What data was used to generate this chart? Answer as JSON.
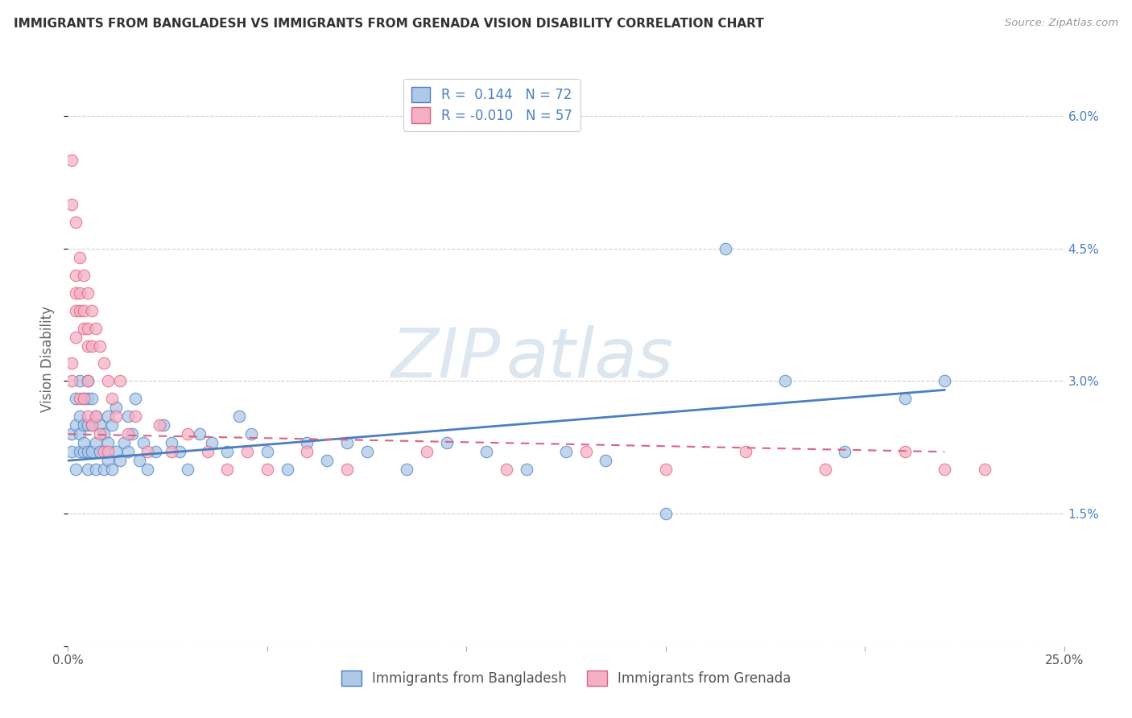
{
  "title": "IMMIGRANTS FROM BANGLADESH VS IMMIGRANTS FROM GRENADA VISION DISABILITY CORRELATION CHART",
  "source": "Source: ZipAtlas.com",
  "ylabel": "Vision Disability",
  "xlim": [
    0.0,
    0.25
  ],
  "ylim": [
    0.0,
    0.065
  ],
  "color_bangladesh": "#adc8e8",
  "color_grenada": "#f4b0c4",
  "line_color_bangladesh": "#4a7fc1",
  "line_color_grenada": "#e06080",
  "watermark_zip": "ZIP",
  "watermark_atlas": "atlas",
  "bangladesh_x": [
    0.001,
    0.001,
    0.002,
    0.002,
    0.002,
    0.003,
    0.003,
    0.003,
    0.003,
    0.004,
    0.004,
    0.004,
    0.004,
    0.005,
    0.005,
    0.005,
    0.005,
    0.005,
    0.006,
    0.006,
    0.006,
    0.007,
    0.007,
    0.007,
    0.008,
    0.008,
    0.009,
    0.009,
    0.01,
    0.01,
    0.01,
    0.011,
    0.011,
    0.012,
    0.012,
    0.013,
    0.014,
    0.015,
    0.015,
    0.016,
    0.017,
    0.018,
    0.019,
    0.02,
    0.022,
    0.024,
    0.026,
    0.028,
    0.03,
    0.033,
    0.036,
    0.04,
    0.043,
    0.046,
    0.05,
    0.055,
    0.06,
    0.065,
    0.07,
    0.075,
    0.085,
    0.095,
    0.105,
    0.115,
    0.125,
    0.135,
    0.15,
    0.165,
    0.18,
    0.195,
    0.21,
    0.22
  ],
  "bangladesh_y": [
    0.022,
    0.024,
    0.02,
    0.025,
    0.028,
    0.022,
    0.024,
    0.026,
    0.03,
    0.022,
    0.025,
    0.028,
    0.023,
    0.02,
    0.022,
    0.025,
    0.028,
    0.03,
    0.022,
    0.025,
    0.028,
    0.02,
    0.023,
    0.026,
    0.022,
    0.025,
    0.02,
    0.024,
    0.021,
    0.023,
    0.026,
    0.02,
    0.025,
    0.022,
    0.027,
    0.021,
    0.023,
    0.022,
    0.026,
    0.024,
    0.028,
    0.021,
    0.023,
    0.02,
    0.022,
    0.025,
    0.023,
    0.022,
    0.02,
    0.024,
    0.023,
    0.022,
    0.026,
    0.024,
    0.022,
    0.02,
    0.023,
    0.021,
    0.023,
    0.022,
    0.02,
    0.023,
    0.022,
    0.02,
    0.022,
    0.021,
    0.015,
    0.045,
    0.03,
    0.022,
    0.028,
    0.03
  ],
  "grenada_x": [
    0.001,
    0.001,
    0.001,
    0.001,
    0.002,
    0.002,
    0.002,
    0.002,
    0.002,
    0.003,
    0.003,
    0.003,
    0.003,
    0.004,
    0.004,
    0.004,
    0.004,
    0.005,
    0.005,
    0.005,
    0.005,
    0.005,
    0.006,
    0.006,
    0.006,
    0.007,
    0.007,
    0.008,
    0.008,
    0.009,
    0.009,
    0.01,
    0.01,
    0.011,
    0.012,
    0.013,
    0.015,
    0.017,
    0.02,
    0.023,
    0.026,
    0.03,
    0.035,
    0.04,
    0.045,
    0.05,
    0.06,
    0.07,
    0.09,
    0.11,
    0.13,
    0.15,
    0.17,
    0.19,
    0.21,
    0.22,
    0.23
  ],
  "grenada_y": [
    0.05,
    0.055,
    0.03,
    0.032,
    0.048,
    0.042,
    0.04,
    0.038,
    0.035,
    0.044,
    0.04,
    0.038,
    0.028,
    0.042,
    0.038,
    0.036,
    0.028,
    0.04,
    0.036,
    0.034,
    0.03,
    0.026,
    0.038,
    0.034,
    0.025,
    0.036,
    0.026,
    0.034,
    0.024,
    0.032,
    0.022,
    0.03,
    0.022,
    0.028,
    0.026,
    0.03,
    0.024,
    0.026,
    0.022,
    0.025,
    0.022,
    0.024,
    0.022,
    0.02,
    0.022,
    0.02,
    0.022,
    0.02,
    0.022,
    0.02,
    0.022,
    0.02,
    0.022,
    0.02,
    0.022,
    0.02,
    0.02
  ]
}
